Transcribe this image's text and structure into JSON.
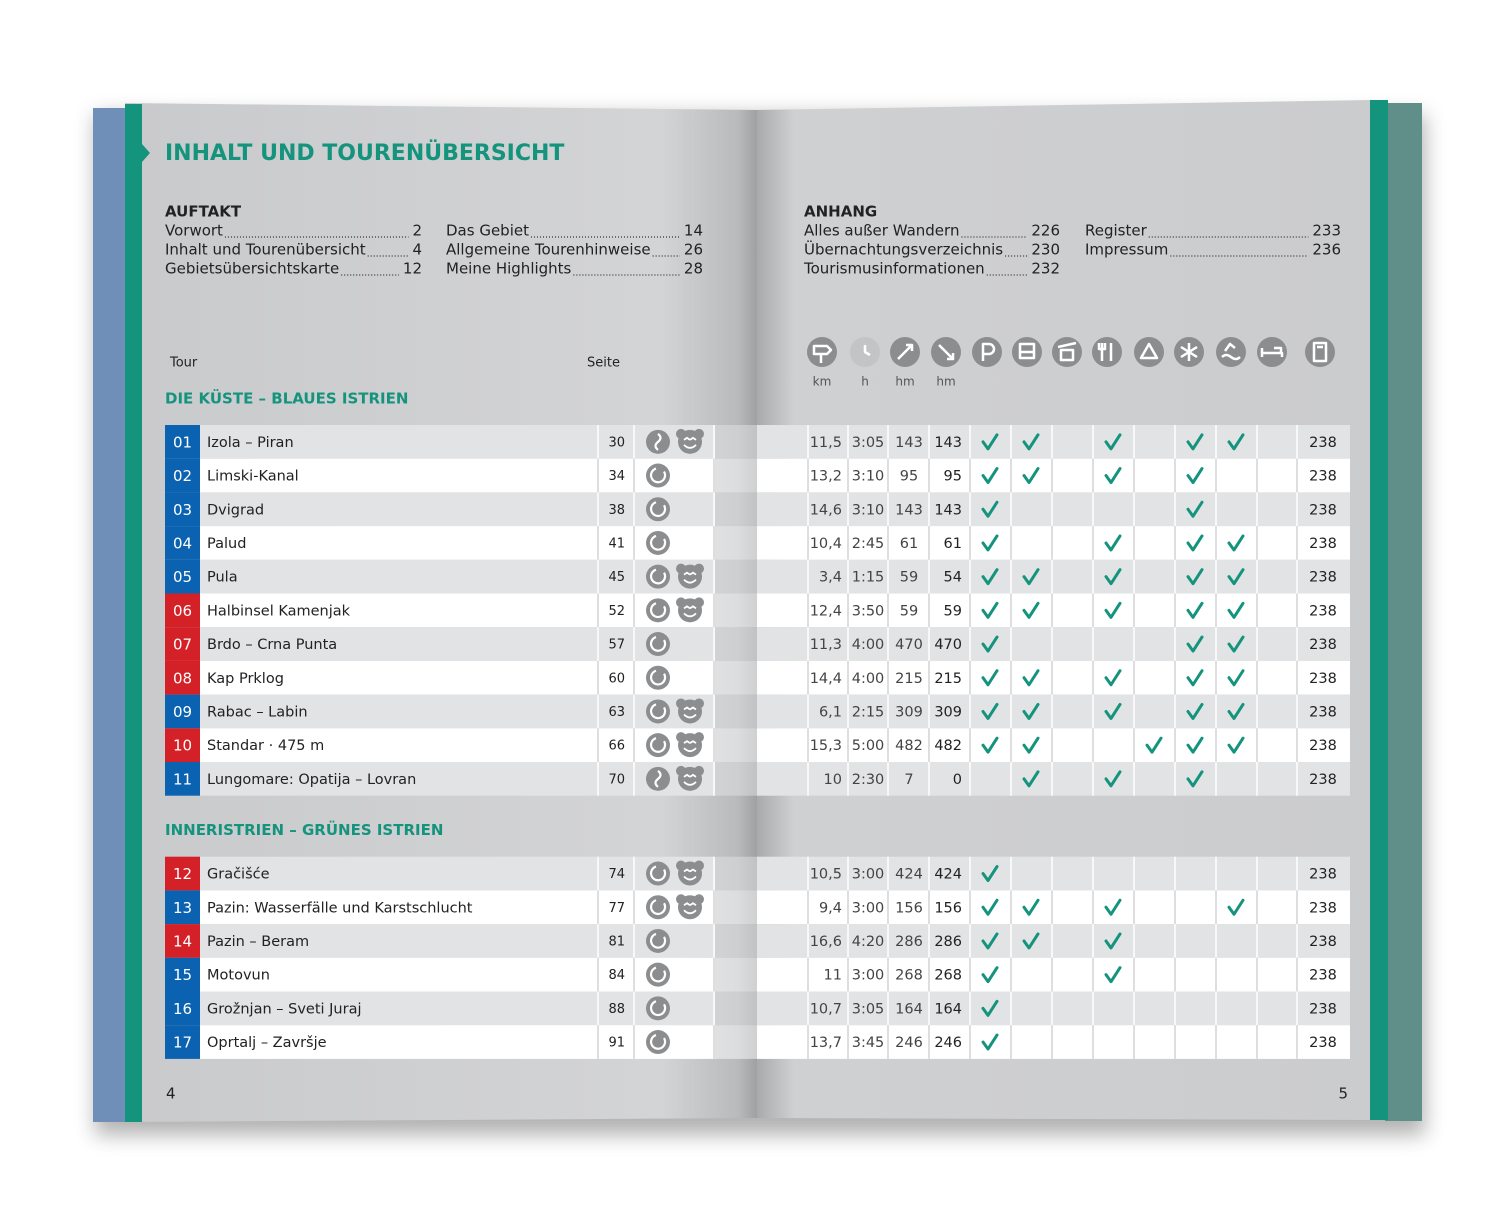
{
  "title": "INHALT UND TOURENÜBERSICHT",
  "toc": [
    {
      "heading": "AUFTAKT",
      "columns": [
        [
          {
            "label": "Vorwort",
            "page": 2
          },
          {
            "label": "Inhalt und Tourenübersicht",
            "page": 4
          },
          {
            "label": "Gebietsübersichtskarte",
            "page": 12
          }
        ],
        [
          {
            "label": "Das Gebiet",
            "page": 14
          },
          {
            "label": "Allgemeine Tourenhinweise",
            "page": 26
          },
          {
            "label": "Meine Highlights",
            "page": 28
          }
        ]
      ]
    },
    {
      "heading": "ANHANG",
      "columns": [
        [
          {
            "label": "Alles außer Wandern",
            "page": 226
          },
          {
            "label": "Übernachtungsverzeichnis",
            "page": 230
          },
          {
            "label": "Tourismusinformationen",
            "page": 232
          }
        ],
        [
          {
            "label": "Register",
            "page": 233
          },
          {
            "label": "Impressum",
            "page": 236
          }
        ]
      ]
    }
  ],
  "table": {
    "header": {
      "tour": "Tour",
      "page": "Seite",
      "units": [
        "km",
        "h",
        "hm",
        "hm"
      ]
    },
    "sections": [
      {
        "title": "DIE KÜSTE – BLAUES ISTRIEN",
        "rows": [
          {
            "no": "01",
            "color": "#0b62b0",
            "name": "Izola – Piran",
            "page": 30,
            "loop": false,
            "kids": true,
            "km": "11,5",
            "time": "3:05",
            "ascent": 143,
            "descent": 143,
            "checks": [
              true,
              true,
              false,
              true,
              false,
              true,
              true,
              false
            ],
            "ref": 238
          },
          {
            "no": "02",
            "color": "#0b62b0",
            "name": "Limski-Kanal",
            "page": 34,
            "loop": true,
            "kids": false,
            "km": "13,2",
            "time": "3:10",
            "ascent": 95,
            "descent": 95,
            "checks": [
              true,
              true,
              false,
              true,
              false,
              true,
              false,
              false
            ],
            "ref": 238
          },
          {
            "no": "03",
            "color": "#0b62b0",
            "name": "Dvigrad",
            "page": 38,
            "loop": true,
            "kids": false,
            "km": "14,6",
            "time": "3:10",
            "ascent": 143,
            "descent": 143,
            "checks": [
              true,
              false,
              false,
              false,
              false,
              true,
              false,
              false
            ],
            "ref": 238
          },
          {
            "no": "04",
            "color": "#0b62b0",
            "name": "Palud",
            "page": 41,
            "loop": true,
            "kids": false,
            "km": "10,4",
            "time": "2:45",
            "ascent": 61,
            "descent": 61,
            "checks": [
              true,
              false,
              false,
              true,
              false,
              true,
              true,
              false
            ],
            "ref": 238
          },
          {
            "no": "05",
            "color": "#0b62b0",
            "name": "Pula",
            "page": 45,
            "loop": true,
            "kids": true,
            "km": "3,4",
            "time": "1:15",
            "ascent": 59,
            "descent": 54,
            "checks": [
              true,
              true,
              false,
              true,
              false,
              true,
              true,
              false
            ],
            "ref": 238
          },
          {
            "no": "06",
            "color": "#d42027",
            "name": "Halbinsel Kamenjak",
            "page": 52,
            "loop": true,
            "kids": true,
            "km": "12,4",
            "time": "3:50",
            "ascent": 59,
            "descent": 59,
            "checks": [
              true,
              true,
              false,
              true,
              false,
              true,
              true,
              false
            ],
            "ref": 238
          },
          {
            "no": "07",
            "color": "#d42027",
            "name": "Brdo – Crna Punta",
            "page": 57,
            "loop": true,
            "kids": false,
            "km": "11,3",
            "time": "4:00",
            "ascent": 470,
            "descent": 470,
            "checks": [
              true,
              false,
              false,
              false,
              false,
              true,
              true,
              false
            ],
            "ref": 238
          },
          {
            "no": "08",
            "color": "#d42027",
            "name": "Kap Prklog",
            "page": 60,
            "loop": true,
            "kids": false,
            "km": "14,4",
            "time": "4:00",
            "ascent": 215,
            "descent": 215,
            "checks": [
              true,
              true,
              false,
              true,
              false,
              true,
              true,
              false
            ],
            "ref": 238
          },
          {
            "no": "09",
            "color": "#0b62b0",
            "name": "Rabac – Labin",
            "page": 63,
            "loop": true,
            "kids": true,
            "km": "6,1",
            "time": "2:15",
            "ascent": 309,
            "descent": 309,
            "checks": [
              true,
              true,
              false,
              true,
              false,
              true,
              true,
              false
            ],
            "ref": 238
          },
          {
            "no": "10",
            "color": "#d42027",
            "name": "Standar · 475 m",
            "page": 66,
            "loop": true,
            "kids": true,
            "km": "15,3",
            "time": "5:00",
            "ascent": 482,
            "descent": 482,
            "checks": [
              true,
              true,
              false,
              false,
              true,
              true,
              true,
              false
            ],
            "ref": 238
          },
          {
            "no": "11",
            "color": "#0b62b0",
            "name": "Lungomare: Opatija – Lovran",
            "page": 70,
            "loop": false,
            "kids": true,
            "km": "10",
            "time": "2:30",
            "ascent": 7,
            "descent": 0,
            "checks": [
              false,
              true,
              false,
              true,
              false,
              true,
              false,
              false
            ],
            "ref": 238
          }
        ]
      },
      {
        "title": "INNERISTRIEN – GRÜNES ISTRIEN",
        "rows": [
          {
            "no": "12",
            "color": "#d42027",
            "name": "Gračišće",
            "page": 74,
            "loop": true,
            "kids": true,
            "km": "10,5",
            "time": "3:00",
            "ascent": 424,
            "descent": 424,
            "checks": [
              true,
              false,
              false,
              false,
              false,
              false,
              false,
              false
            ],
            "ref": 238
          },
          {
            "no": "13",
            "color": "#0b62b0",
            "name": "Pazin: Wasserfälle und Karstschlucht",
            "page": 77,
            "loop": true,
            "kids": true,
            "km": "9,4",
            "time": "3:00",
            "ascent": 156,
            "descent": 156,
            "checks": [
              true,
              true,
              false,
              true,
              false,
              false,
              true,
              false
            ],
            "ref": 238
          },
          {
            "no": "14",
            "color": "#d42027",
            "name": "Pazin – Beram",
            "page": 81,
            "loop": true,
            "kids": false,
            "km": "16,6",
            "time": "4:20",
            "ascent": 286,
            "descent": 286,
            "checks": [
              true,
              true,
              false,
              true,
              false,
              false,
              false,
              false
            ],
            "ref": 238
          },
          {
            "no": "15",
            "color": "#0b62b0",
            "name": "Motovun",
            "page": 84,
            "loop": true,
            "kids": false,
            "km": "11",
            "time": "3:00",
            "ascent": 268,
            "descent": 268,
            "checks": [
              true,
              false,
              false,
              true,
              false,
              false,
              false,
              false
            ],
            "ref": 238
          },
          {
            "no": "16",
            "color": "#0b62b0",
            "name": "Grožnjan – Sveti Juraj",
            "page": 88,
            "loop": true,
            "kids": false,
            "km": "10,7",
            "time": "3:05",
            "ascent": 164,
            "descent": 164,
            "checks": [
              true,
              false,
              false,
              false,
              false,
              false,
              false,
              false
            ],
            "ref": 238
          },
          {
            "no": "17",
            "color": "#0b62b0",
            "name": "Oprtalj – Završje",
            "page": 91,
            "loop": true,
            "kids": false,
            "km": "13,7",
            "time": "3:45",
            "ascent": 246,
            "descent": 246,
            "checks": [
              true,
              false,
              false,
              false,
              false,
              false,
              false,
              false
            ],
            "ref": 238
          }
        ]
      }
    ]
  },
  "page_numbers": [
    4,
    5
  ]
}
